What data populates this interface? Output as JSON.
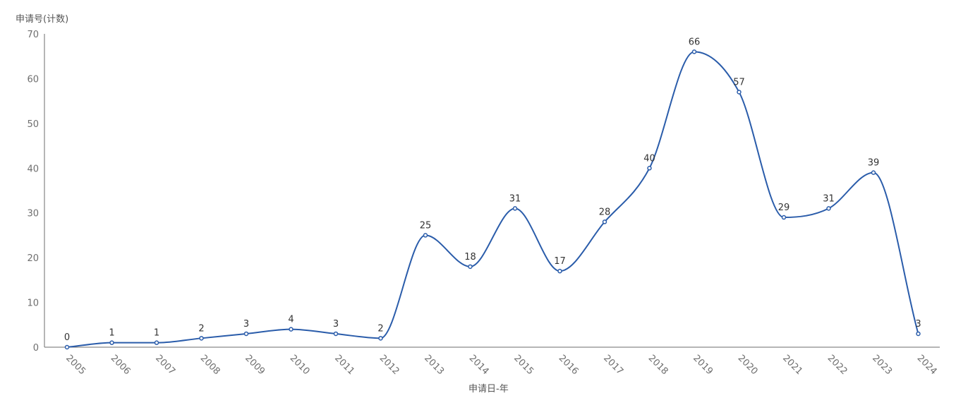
{
  "chart_data": {
    "type": "line",
    "ylabel": "申请号(计数)",
    "xlabel": "申请日-年",
    "ylim": [
      0,
      70
    ],
    "yticks": [
      0,
      10,
      20,
      30,
      40,
      50,
      60,
      70
    ],
    "smooth": true,
    "grid": false,
    "line_color": "#2a5caa",
    "categories": [
      "2005",
      "2006",
      "2007",
      "2008",
      "2009",
      "2010",
      "2011",
      "2012",
      "2013",
      "2014",
      "2015",
      "2016",
      "2017",
      "2018",
      "2019",
      "2020",
      "2021",
      "2022",
      "2023",
      "2024"
    ],
    "series": [
      {
        "values": [
          0,
          1,
          1,
          2,
          3,
          4,
          3,
          2,
          25,
          18,
          31,
          17,
          28,
          40,
          66,
          57,
          29,
          31,
          39,
          3
        ]
      }
    ]
  }
}
